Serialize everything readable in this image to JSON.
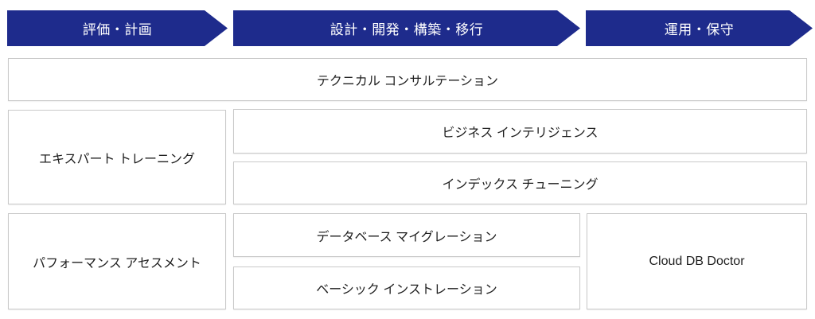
{
  "colors": {
    "arrow_blue": "#1e2b8c",
    "arrow_text": "#ffffff",
    "box_border": "#c9c9c9",
    "box_text": "#1f1f1f",
    "background": "#ffffff"
  },
  "phases": [
    {
      "label": "評価・計画"
    },
    {
      "label": "設計・開発・構築・移行"
    },
    {
      "label": "運用・保守"
    }
  ],
  "services": {
    "technical_consultation": "テクニカル コンサルテーション",
    "expert_training": "エキスパート トレーニング",
    "business_intelligence": "ビジネス インテリジェンス",
    "index_tuning": "インデックス チューニング",
    "performance_assessment": "パフォーマンス アセスメント",
    "database_migration": "データベース マイグレーション",
    "basic_installation": "ベーシック インストレーション",
    "cloud_db_doctor": "Cloud DB Doctor"
  }
}
